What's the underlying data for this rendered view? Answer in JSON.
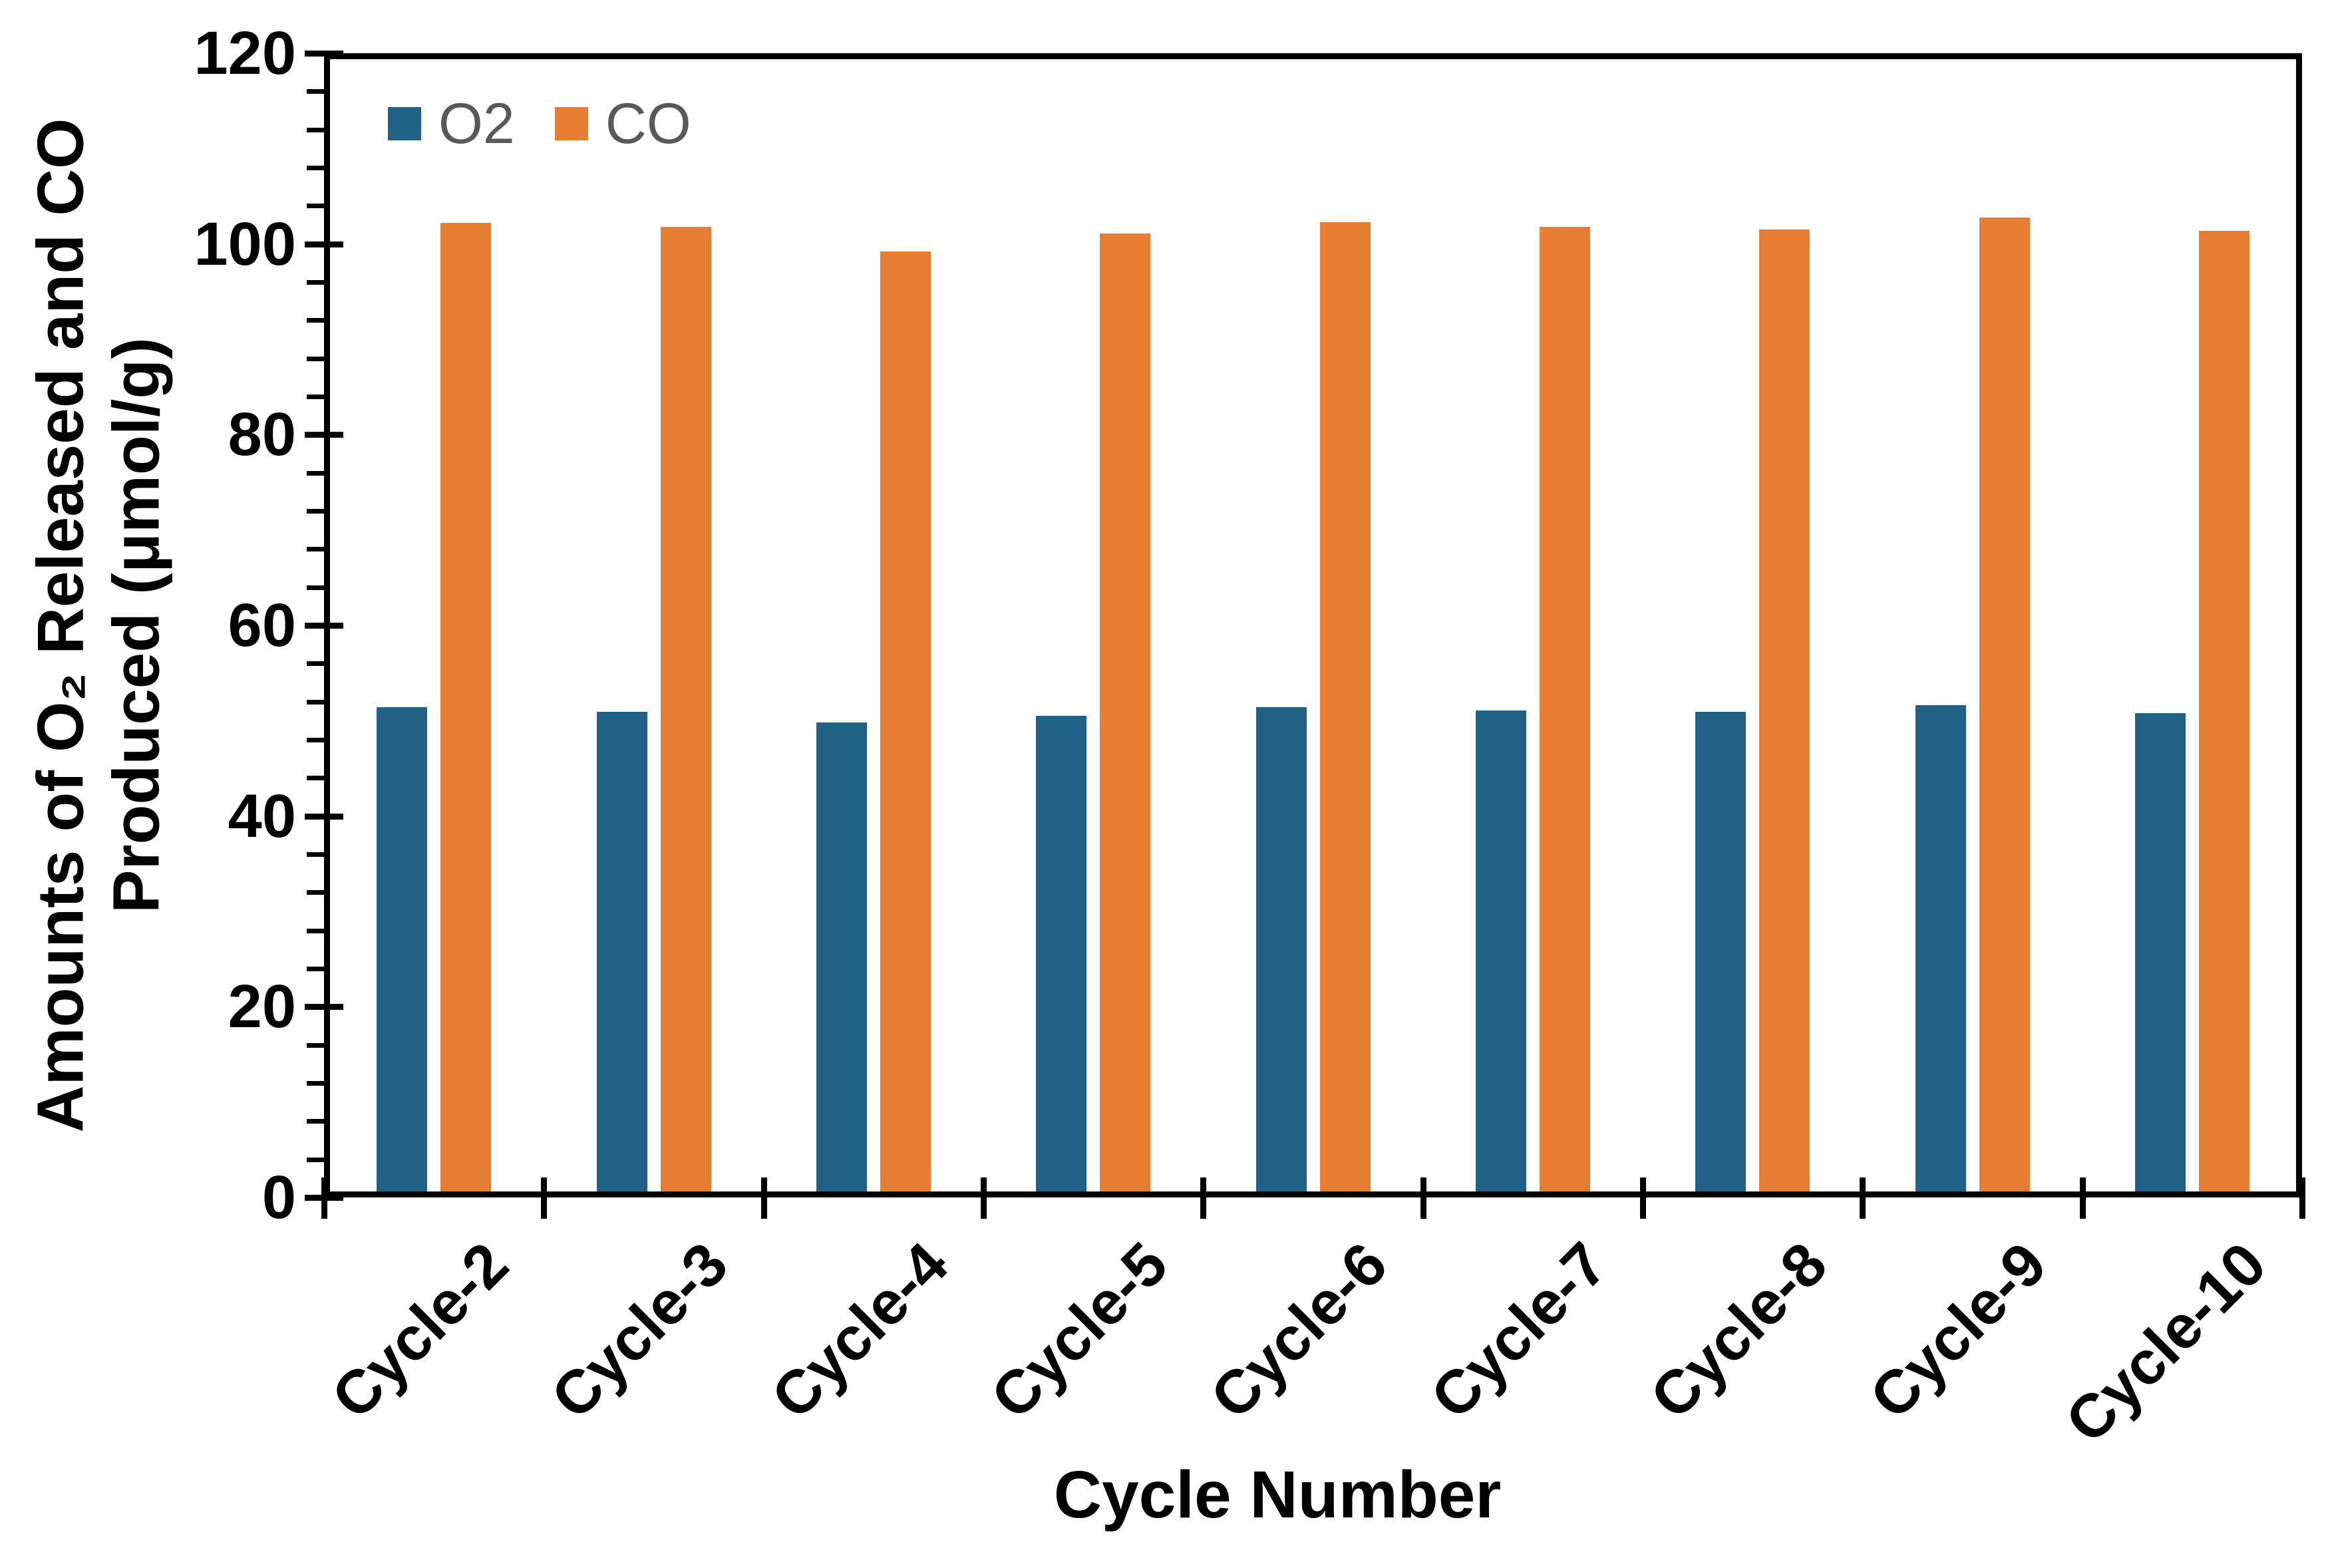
{
  "chart_data": {
    "type": "bar",
    "title": "",
    "xlabel": "Cycle Number",
    "ylabel": "Amounts of O₂ Released and CO\nProduced (μmol/g)",
    "categories": [
      "Cycle-2",
      "Cycle-3",
      "Cycle-4",
      "Cycle-5",
      "Cycle-6",
      "Cycle-7",
      "Cycle-8",
      "Cycle-9",
      "Cycle-10"
    ],
    "series": [
      {
        "name": "O2",
        "color": "#206185",
        "values": [
          51.4,
          50.9,
          49.8,
          50.5,
          51.4,
          51.1,
          50.9,
          51.6,
          50.8
        ]
      },
      {
        "name": "CO",
        "color": "#E57D33",
        "values": [
          102.2,
          101.8,
          99.2,
          101.1,
          102.3,
          101.8,
          101.5,
          102.8,
          101.4
        ]
      }
    ],
    "ylim": [
      0,
      120
    ],
    "y_major_step": 20,
    "y_minor_step": 4,
    "y_tick_labels": [
      "0",
      "20",
      "40",
      "60",
      "80",
      "100",
      "120"
    ],
    "grid": false,
    "legend_position": "top-left-inside",
    "legend_text_color": "#595959",
    "axis_text_color": "#000000",
    "plot_border": true
  }
}
